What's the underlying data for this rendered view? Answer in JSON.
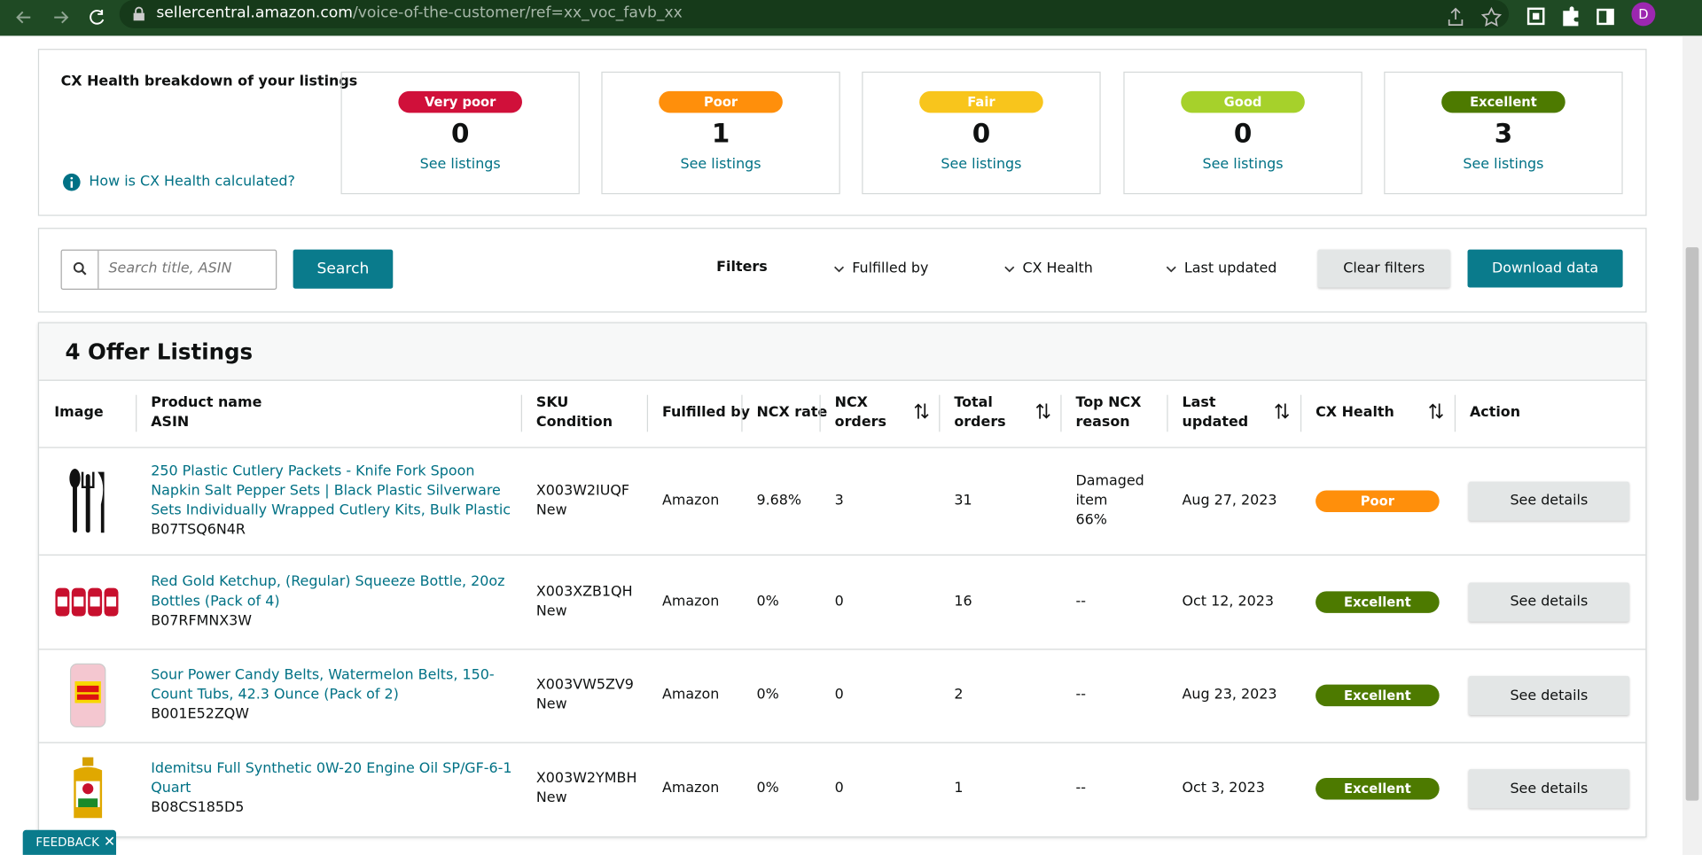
{
  "browser": {
    "url_host": "sellercentral.amazon.com",
    "url_path": "/voice-of-the-customer/ref=xx_voc_favb_xx",
    "avatar": "D"
  },
  "health": {
    "title": "CX Health breakdown of your listings",
    "help_link": "How is CX Health calculated?",
    "cards": [
      {
        "label": "Very poor",
        "count": 0,
        "link": "See listings",
        "color": "#d0103a"
      },
      {
        "label": "Poor",
        "count": 1,
        "link": "See listings",
        "color": "#ff8f0b"
      },
      {
        "label": "Fair",
        "count": 0,
        "link": "See listings",
        "color": "#f8c51c"
      },
      {
        "label": "Good",
        "count": 0,
        "link": "See listings",
        "color": "#a6d12b"
      },
      {
        "label": "Excellent",
        "count": 3,
        "link": "See listings",
        "color": "#4d7a00"
      }
    ]
  },
  "search": {
    "placeholder": "Search title, ASIN",
    "button": "Search",
    "filters_label": "Filters",
    "filters": [
      "Fulfilled by",
      "CX Health",
      "Last updated"
    ],
    "clear": "Clear filters",
    "download": "Download data"
  },
  "listings": {
    "title": "4 Offer Listings",
    "columns": [
      [
        "Image"
      ],
      [
        "Product name",
        "ASIN"
      ],
      [
        "SKU",
        "Condition"
      ],
      [
        "Fulfilled by"
      ],
      [
        "NCX rate"
      ],
      [
        "NCX",
        "orders"
      ],
      [
        "Total",
        "orders"
      ],
      [
        "Top NCX",
        "reason"
      ],
      [
        "Last",
        "updated"
      ],
      [
        "CX Health"
      ],
      [
        "Action"
      ]
    ],
    "rows": [
      {
        "product": "250 Plastic Cutlery Packets - Knife Fork Spoon Napkin Salt Pepper Sets | Black Plastic Silverware Sets Individually Wrapped Cutlery Kits, Bulk Plastic",
        "asin": "B07TSQ6N4R",
        "sku": "X003W2IUQF",
        "condition": "New",
        "fulfilled_by": "Amazon",
        "ncx_rate": "9.68%",
        "ncx_orders": 3,
        "total_orders": 31,
        "top_reason": [
          "Damaged",
          "item",
          "66%"
        ],
        "last_updated": "Aug 27, 2023",
        "health": "Poor",
        "action": "See details"
      },
      {
        "product": "Red Gold Ketchup, (Regular) Squeeze Bottle, 20oz Bottles (Pack of 4)",
        "asin": "B07RFMNX3W",
        "sku": "X003XZB1QH",
        "condition": "New",
        "fulfilled_by": "Amazon",
        "ncx_rate": "0%",
        "ncx_orders": 0,
        "total_orders": 16,
        "top_reason": [
          "--"
        ],
        "last_updated": "Oct 12, 2023",
        "health": "Excellent",
        "action": "See details"
      },
      {
        "product": "Sour Power Candy Belts, Watermelon Belts, 150-Count Tubs, 42.3 Ounce (Pack of 2)",
        "asin": "B001E52ZQW",
        "sku": "X003VW5ZV9",
        "condition": "New",
        "fulfilled_by": "Amazon",
        "ncx_rate": "0%",
        "ncx_orders": 0,
        "total_orders": 2,
        "top_reason": [
          "--"
        ],
        "last_updated": "Aug 23, 2023",
        "health": "Excellent",
        "action": "See details"
      },
      {
        "product": "Idemitsu Full Synthetic 0W-20 Engine Oil SP/GF-6-1 Quart",
        "asin": "B08CS185D5",
        "sku": "X003W2YMBH",
        "condition": "New",
        "fulfilled_by": "Amazon",
        "ncx_rate": "0%",
        "ncx_orders": 0,
        "total_orders": 1,
        "top_reason": [
          "--"
        ],
        "last_updated": "Oct 3, 2023",
        "health": "Excellent",
        "action": "See details"
      }
    ]
  },
  "feedback": "FEEDBACK"
}
